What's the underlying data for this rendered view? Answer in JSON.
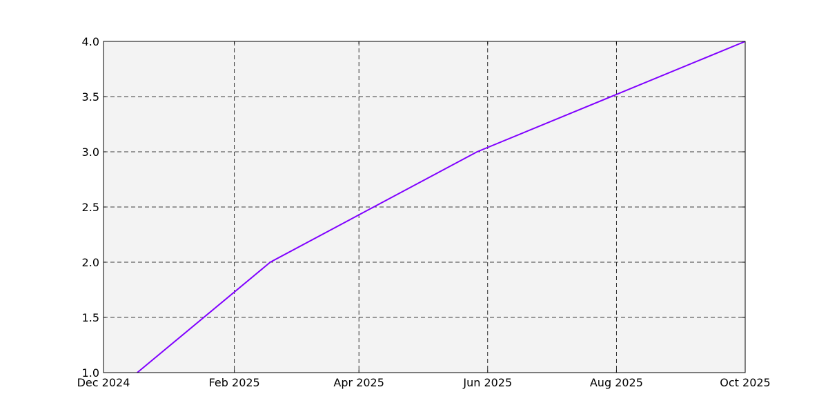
{
  "chart_data": {
    "type": "line",
    "title": "",
    "xlabel": "",
    "ylabel": "",
    "x_axis_type": "date",
    "xlim": [
      "2024-12-01",
      "2025-10-01"
    ],
    "ylim": [
      1.0,
      4.0
    ],
    "x_ticks": [
      {
        "date": "2024-12-01",
        "label": "Dec 2024"
      },
      {
        "date": "2025-02-01",
        "label": "Feb 2025"
      },
      {
        "date": "2025-04-01",
        "label": "Apr 2025"
      },
      {
        "date": "2025-06-01",
        "label": "Jun 2025"
      },
      {
        "date": "2025-08-01",
        "label": "Aug 2025"
      },
      {
        "date": "2025-10-01",
        "label": "Oct 2025"
      }
    ],
    "y_ticks": [
      {
        "value": 1.0,
        "label": "1.0"
      },
      {
        "value": 1.5,
        "label": "1.5"
      },
      {
        "value": 2.0,
        "label": "2.0"
      },
      {
        "value": 2.5,
        "label": "2.5"
      },
      {
        "value": 3.0,
        "label": "3.0"
      },
      {
        "value": 3.5,
        "label": "3.5"
      },
      {
        "value": 4.0,
        "label": "4.0"
      }
    ],
    "grid": true,
    "grid_style": "dashed",
    "plot_background": "#f3f3f3",
    "series": [
      {
        "color": "#8000ff",
        "points": [
          {
            "x": "2024-12-17",
            "y": 1.0
          },
          {
            "x": "2025-02-18",
            "y": 2.0
          },
          {
            "x": "2025-05-27",
            "y": 3.0
          },
          {
            "x": "2025-10-01",
            "y": 4.0
          }
        ]
      }
    ]
  }
}
